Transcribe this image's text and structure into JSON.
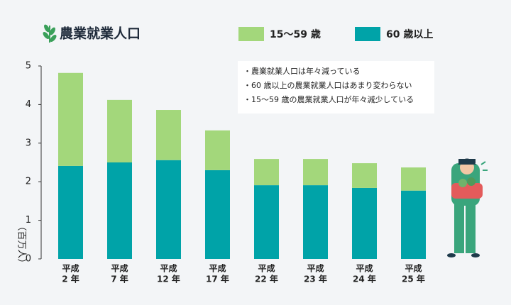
{
  "chart_data": {
    "type": "stacked_bar",
    "title": "農業就業人口",
    "y_label": "（百万人）",
    "categories": [
      [
        "平成",
        "2 年"
      ],
      [
        "平成",
        "7 年"
      ],
      [
        "平成",
        "12 年"
      ],
      [
        "平成",
        "17 年"
      ],
      [
        "平成",
        "22 年"
      ],
      [
        "平成",
        "23 年"
      ],
      [
        "平成",
        "24 年"
      ],
      [
        "平成",
        "25 年"
      ]
    ],
    "series": [
      {
        "name": "15〜59 歳",
        "color": "#a3d77b",
        "values": [
          2.41,
          1.62,
          1.3,
          1.03,
          0.68,
          0.68,
          0.64,
          0.6
        ]
      },
      {
        "name": "60 歳以上",
        "color": "#00a3a8",
        "values": [
          2.41,
          2.5,
          2.56,
          2.3,
          1.91,
          1.91,
          1.84,
          1.77
        ]
      }
    ],
    "ylim": [
      0,
      5
    ],
    "yticks": [
      0,
      1,
      2,
      3,
      4,
      5
    ],
    "annotations": [
      "・農業就業人口は年々減っている",
      "・60 歳以上の農業就業人口はあまり変わらない",
      "・15〜59 歳の農業就業人口が年々減少している"
    ]
  }
}
